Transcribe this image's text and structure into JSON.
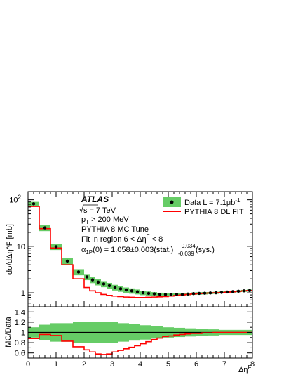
{
  "chart_data": [
    {
      "type": "line",
      "panel": "main",
      "ylabel": "dσ/dΔη^F [mb]",
      "xlabel": "Δη^F",
      "ylog": true,
      "xlim": [
        0,
        8
      ],
      "ylim": [
        0.5,
        150
      ],
      "x_ticks": [
        0,
        1,
        2,
        3,
        4,
        5,
        6,
        7,
        8
      ],
      "y_ticks": [
        {
          "value": 1,
          "label": "1"
        },
        {
          "value": 10,
          "label": "10"
        },
        {
          "value": 100,
          "label": "10",
          "exponent": "2"
        }
      ],
      "annotations": {
        "experiment": "ATLAS",
        "sqrt_s": "s = 7 TeV",
        "pt_cut_main": "p",
        "pt_cut_sub": "T",
        "pt_cut_rest": " > 200 MeV",
        "tune": "PYTHIA 8 MC Tune",
        "fit_region": "Fit in region 6 < Δη",
        "fit_region_sup": "F",
        "fit_region_end": " < 8",
        "alpha_prefix": "α",
        "alpha_sub": "1P",
        "alpha_value": "(0) = 1.058±0.003(stat.)",
        "alpha_sys_up": "+0.034",
        "alpha_sys_down": "-0.039",
        "alpha_suffix": "(sys.)"
      },
      "legend_position": "top-right",
      "series": [
        {
          "name": "Data L = 7.1μb",
          "name_sup": "-1",
          "kind": "points_with_band",
          "color": "#000000",
          "band_color": "#66cc66",
          "x": [
            0.2,
            0.6,
            1.0,
            1.4,
            1.8,
            2.1,
            2.3,
            2.5,
            2.7,
            2.9,
            3.1,
            3.3,
            3.5,
            3.7,
            3.9,
            4.1,
            4.3,
            4.5,
            4.7,
            4.9,
            5.1,
            5.3,
            5.5,
            5.7,
            5.9,
            6.1,
            6.3,
            6.5,
            6.7,
            6.9,
            7.1,
            7.3,
            7.5,
            7.7,
            7.9
          ],
          "y": [
            82,
            25,
            9.8,
            4.8,
            2.8,
            2.2,
            1.9,
            1.7,
            1.55,
            1.42,
            1.3,
            1.22,
            1.15,
            1.1,
            1.05,
            1.0,
            0.97,
            0.95,
            0.93,
            0.92,
            0.92,
            0.93,
            0.92,
            0.94,
            0.96,
            0.97,
            0.98,
            0.99,
            1.0,
            1.02,
            1.04,
            1.06,
            1.08,
            1.1,
            1.12
          ],
          "band_halfwidth": [
            0.1,
            0.15,
            0.15,
            0.15,
            0.15,
            0.15,
            0.15,
            0.15,
            0.15,
            0.15,
            0.14,
            0.14,
            0.13,
            0.13,
            0.12,
            0.11,
            0.1,
            0.09,
            0.08,
            0.07,
            0.06,
            0.06,
            0.06,
            0.06,
            0.06,
            0.06,
            0.06,
            0.05,
            0.05,
            0.05,
            0.05,
            0.05,
            0.05,
            0.05,
            0.05
          ]
        },
        {
          "name": "PYTHIA 8 DL FIT",
          "kind": "step",
          "color": "#ff0000",
          "edges": [
            0,
            0.4,
            0.8,
            1.2,
            1.6,
            2.0,
            2.2,
            2.4,
            2.6,
            2.8,
            3.0,
            3.2,
            3.4,
            3.6,
            3.8,
            4.0,
            4.2,
            4.4,
            4.6,
            4.8,
            5.0,
            5.2,
            5.4,
            5.6,
            5.8,
            6.0,
            6.2,
            6.4,
            6.6,
            6.8,
            7.0,
            7.2,
            7.4,
            7.6,
            7.8,
            8.0
          ],
          "y": [
            72,
            24,
            9.2,
            4.0,
            2.0,
            1.3,
            1.1,
            1.0,
            0.92,
            0.88,
            0.85,
            0.83,
            0.81,
            0.8,
            0.79,
            0.79,
            0.8,
            0.81,
            0.82,
            0.83,
            0.85,
            0.88,
            0.9,
            0.92,
            0.94,
            0.96,
            0.98,
            0.99,
            1.0,
            1.01,
            1.03,
            1.05,
            1.07,
            1.1,
            1.12
          ]
        }
      ]
    },
    {
      "type": "line",
      "panel": "ratio",
      "ylabel": "MC/Data",
      "xlabel": "Δη^F",
      "xlim": [
        0,
        8
      ],
      "ylim": [
        0.5,
        1.5
      ],
      "x_ticks": [
        0,
        1,
        2,
        3,
        4,
        5,
        6,
        7,
        8
      ],
      "y_ticks": [
        0.6,
        0.8,
        1,
        1.2,
        1.4
      ],
      "y_tick_labels": [
        "0.6",
        "0.8",
        "1",
        "1.2",
        "1.4"
      ],
      "reference_line": 1,
      "band_color": "#66cc66",
      "band_x": [
        0,
        0.4,
        0.8,
        1.2,
        1.6,
        2.0,
        2.4,
        2.8,
        3.2,
        3.6,
        4.0,
        4.4,
        4.8,
        5.2,
        5.6,
        6.0,
        6.4,
        6.8,
        7.2,
        7.6,
        8.0
      ],
      "band_halfwidth": [
        0.1,
        0.15,
        0.18,
        0.18,
        0.2,
        0.2,
        0.2,
        0.2,
        0.18,
        0.16,
        0.14,
        0.12,
        0.1,
        0.09,
        0.08,
        0.07,
        0.06,
        0.05,
        0.05,
        0.05,
        0.05
      ],
      "series": [
        {
          "kind": "step",
          "color": "#ff0000",
          "edges": [
            0,
            0.4,
            0.8,
            1.2,
            1.6,
            2.0,
            2.2,
            2.4,
            2.6,
            2.8,
            3.0,
            3.2,
            3.4,
            3.6,
            3.8,
            4.0,
            4.2,
            4.4,
            4.6,
            4.8,
            5.0,
            5.2,
            5.4,
            5.6,
            5.8,
            6.0,
            6.2,
            6.4,
            6.6,
            6.8,
            7.0,
            7.2,
            7.4,
            7.6,
            7.8,
            8.0
          ],
          "y": [
            0.88,
            0.96,
            0.94,
            0.83,
            0.72,
            0.66,
            0.62,
            0.58,
            0.57,
            0.58,
            0.62,
            0.65,
            0.68,
            0.71,
            0.74,
            0.78,
            0.82,
            0.86,
            0.89,
            0.92,
            0.93,
            0.95,
            0.96,
            0.97,
            0.98,
            0.98,
            0.99,
            0.99,
            1.0,
            1.0,
            1.0,
            1.0,
            1.0,
            1.0,
            1.0
          ]
        }
      ]
    }
  ]
}
